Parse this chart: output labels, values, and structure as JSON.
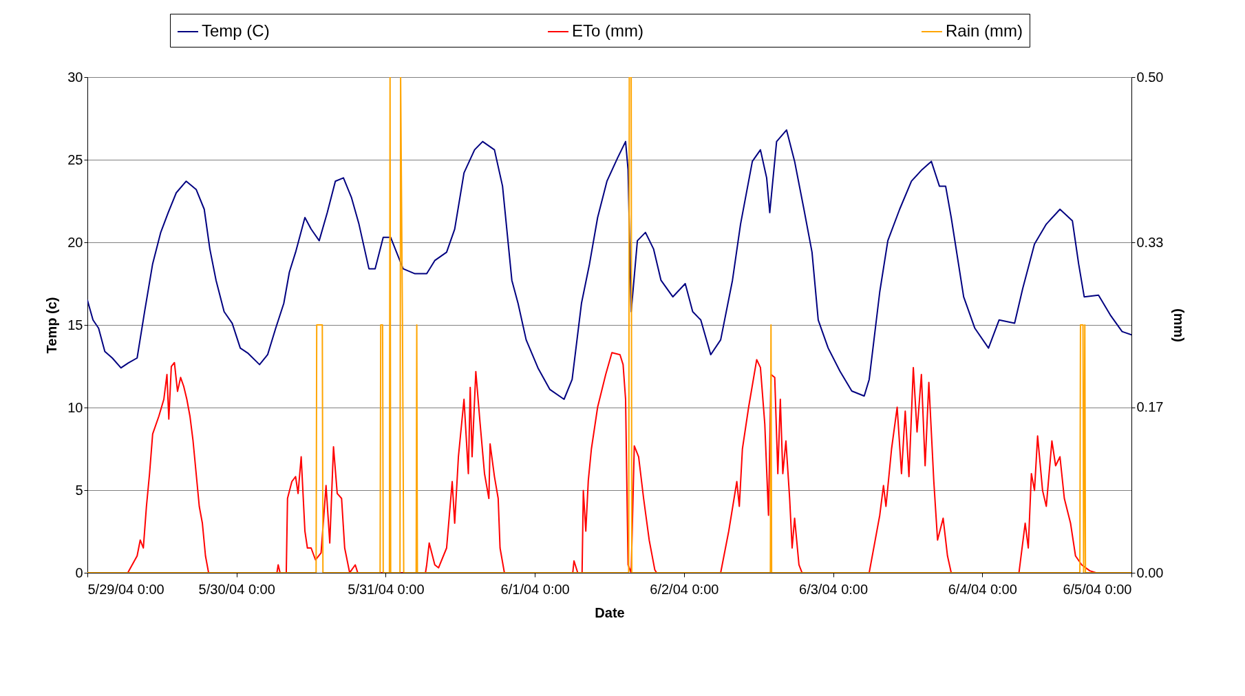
{
  "chart_data": {
    "type": "line",
    "xlabel": "Date",
    "ylabel": "Temp (c)",
    "y2label": "(mm)",
    "xlim": [
      "--05-29T00:00",
      "--06-05T00:00"
    ],
    "xticks": [
      {
        "value": "--05-29T00:00",
        "label": "5/29/04 0:00"
      },
      {
        "value": "--05-30T00:00",
        "label": "5/30/04 0:00"
      },
      {
        "value": "--05-31T00:00",
        "label": "5/31/04 0:00"
      },
      {
        "value": "--06-01T00:00",
        "label": "6/1/04 0:00"
      },
      {
        "value": "--06-02T00:00",
        "label": "6/2/04 0:00"
      },
      {
        "value": "--06-03T00:00",
        "label": "6/3/04 0:00"
      },
      {
        "value": "--06-04T00:00",
        "label": "6/4/04 0:00"
      },
      {
        "value": "--06-05T00:00",
        "label": "6/5/04 0:00"
      }
    ],
    "ylim": [
      0,
      30
    ],
    "yticks": [
      0,
      5,
      10,
      15,
      20,
      25,
      30
    ],
    "y2lim": [
      0,
      0.5
    ],
    "y2ticks": [
      {
        "value": 0,
        "label": "0.00"
      },
      {
        "value": 0.16667,
        "label": "0.17"
      },
      {
        "value": 0.33333,
        "label": "0.33"
      },
      {
        "value": 0.5,
        "label": "0.50"
      }
    ],
    "grid": "y",
    "legend": "top",
    "marker": "none",
    "line_style": "solid",
    "series": [
      {
        "name": "Temp (C)",
        "color": "#000080",
        "x": [
          "--05-29T00:00",
          "--05-29T00:54",
          "--05-29T01:48",
          "--05-29T02:48",
          "--05-29T04:00",
          "--05-29T05:24",
          "--05-29T06:36",
          "--05-29T08:00",
          "--05-29T09:12",
          "--05-29T10:30",
          "--05-29T11:48",
          "--05-29T13:00",
          "--05-29T14:18",
          "--05-29T15:54",
          "--05-29T17:30",
          "--05-29T18:48",
          "--05-29T19:42",
          "--05-29T20:42",
          "--05-29T22:00",
          "--05-29T23:18",
          "--05-30T00:36",
          "--05-30T01:48",
          "--05-30T03:42",
          "--05-30T05:00",
          "--05-30T06:18",
          "--05-30T07:36",
          "--05-30T08:30",
          "--05-30T09:30",
          "--05-30T11:00",
          "--05-30T12:00",
          "--05-30T13:18",
          "--05-30T14:36",
          "--05-30T15:54",
          "--05-30T17:12",
          "--05-30T18:30",
          "--05-30T19:42",
          "--05-30T21:18",
          "--05-30T22:18",
          "--05-30T23:36",
          "--05-31T00:48",
          "--05-31T02:48",
          "--05-31T04:42",
          "--05-31T06:36",
          "--05-31T07:54",
          "--05-31T09:48",
          "--05-31T11:06",
          "--05-31T12:36",
          "--05-31T14:18",
          "--05-31T15:36",
          "--05-31T17:30",
          "--05-31T18:48",
          "--05-31T20:18",
          "--05-31T21:18",
          "--05-31T22:36",
          "--06-01T00:30",
          "--06-01T02:24",
          "--06-01T04:42",
          "--06-01T06:00",
          "--06-01T07:30",
          "--06-01T08:48",
          "--06-01T10:06",
          "--06-01T11:36",
          "--06-01T13:18",
          "--06-01T14:36",
          "--06-01T15:00",
          "--06-01T15:30",
          "--06-01T16:30",
          "--06-01T17:48",
          "--06-01T19:06",
          "--06-01T20:18",
          "--06-01T22:12",
          "--06-02T00:12",
          "--06-02T01:24",
          "--06-02T02:42",
          "--06-02T04:18",
          "--06-02T05:54",
          "--06-02T07:48",
          "--06-02T09:06",
          "--06-02T11:00",
          "--06-02T12:18",
          "--06-02T13:18",
          "--06-02T13:48",
          "--06-02T14:54",
          "--06-02T16:30",
          "--06-02T17:48",
          "--06-02T19:18",
          "--06-02T20:36",
          "--06-02T21:36",
          "--06-02T23:12",
          "--06-03T01:06",
          "--06-03T03:00",
          "--06-03T05:00",
          "--06-03T05:48",
          "--06-03T07:30",
          "--06-03T08:48",
          "--06-03T10:42",
          "--06-03T12:36",
          "--06-03T14:18",
          "--06-03T15:48",
          "--06-03T17:06",
          "--06-03T18:06",
          "--06-03T19:00",
          "--06-03T21:00",
          "--06-03T22:48",
          "--06-04T01:00",
          "--06-04T02:42",
          "--06-04T05:12",
          "--06-04T06:30",
          "--06-04T08:24",
          "--06-04T10:18",
          "--06-04T12:30",
          "--06-04T14:30",
          "--06-04T15:30",
          "--06-04T16:24",
          "--06-04T18:42",
          "--06-04T20:36",
          "--06-04T22:30",
          "--06-05T00:00"
        ],
        "values": [
          16.5,
          15.3,
          14.8,
          13.4,
          13.0,
          12.4,
          12.7,
          13.0,
          15.8,
          18.7,
          20.6,
          21.8,
          23.0,
          23.7,
          23.2,
          22.0,
          19.6,
          17.7,
          15.8,
          15.1,
          13.6,
          13.3,
          12.6,
          13.2,
          14.8,
          16.3,
          18.2,
          19.4,
          21.5,
          20.8,
          20.1,
          21.8,
          23.7,
          23.9,
          22.7,
          21.1,
          18.4,
          18.4,
          20.3,
          20.3,
          18.4,
          18.1,
          18.1,
          18.9,
          19.4,
          20.8,
          24.2,
          25.6,
          26.1,
          25.6,
          23.4,
          17.7,
          16.3,
          14.1,
          12.4,
          11.1,
          10.5,
          11.7,
          16.3,
          18.7,
          21.5,
          23.7,
          25.1,
          26.1,
          24.4,
          15.8,
          20.1,
          20.6,
          19.6,
          17.7,
          16.7,
          17.5,
          15.8,
          15.3,
          13.2,
          14.1,
          17.7,
          21.1,
          24.9,
          25.6,
          23.9,
          21.8,
          26.1,
          26.8,
          24.9,
          22.0,
          19.4,
          15.3,
          13.6,
          12.2,
          11.0,
          10.7,
          11.7,
          17.0,
          20.1,
          22.0,
          23.7,
          24.4,
          24.9,
          23.4,
          23.4,
          21.5,
          16.7,
          14.8,
          13.6,
          15.3,
          15.1,
          17.2,
          19.9,
          21.1,
          22.0,
          21.3,
          18.7,
          16.7,
          16.8,
          15.6,
          14.6,
          14.4
        ]
      },
      {
        "name": "ETo (mm)",
        "color": "#ff0000",
        "axis": "y2",
        "x": [
          "--05-29T00:00",
          "--05-29T06:30",
          "--05-29T08:00",
          "--05-29T08:30",
          "--05-29T09:00",
          "--05-29T09:30",
          "--05-29T10:00",
          "--05-29T10:30",
          "--05-29T11:30",
          "--05-29T12:18",
          "--05-29T12:48",
          "--05-29T13:06",
          "--05-29T13:30",
          "--05-29T14:00",
          "--05-29T14:30",
          "--05-29T15:00",
          "--05-29T15:30",
          "--05-29T16:00",
          "--05-29T16:30",
          "--05-29T17:00",
          "--05-29T17:30",
          "--05-29T18:00",
          "--05-29T18:30",
          "--05-29T19:00",
          "--05-29T19:30",
          "--05-30T06:30",
          "--05-30T06:42",
          "--05-30T07:00",
          "--05-30T08:00",
          "--05-30T08:12",
          "--05-30T08:54",
          "--05-30T09:30",
          "--05-30T09:54",
          "--05-30T10:24",
          "--05-30T11:00",
          "--05-30T11:24",
          "--05-30T12:00",
          "--05-30T12:42",
          "--05-30T13:36",
          "--05-30T14:24",
          "--05-30T15:00",
          "--05-30T15:36",
          "--05-30T16:12",
          "--05-30T16:54",
          "--05-30T17:24",
          "--05-30T18:12",
          "--05-30T19:06",
          "--05-30T19:30",
          "--05-31T06:24",
          "--05-31T06:36",
          "--05-31T07:00",
          "--05-31T07:54",
          "--05-31T08:30",
          "--05-31T09:48",
          "--05-31T10:42",
          "--05-31T11:06",
          "--05-31T11:42",
          "--05-31T12:36",
          "--05-31T13:18",
          "--05-31T13:36",
          "--05-31T13:54",
          "--05-31T14:30",
          "--05-31T15:12",
          "--05-31T15:54",
          "--05-31T16:36",
          "--05-31T16:48",
          "--05-31T17:30",
          "--05-31T18:06",
          "--05-31T18:24",
          "--05-31T19:06",
          "--06-01T06:06",
          "--06-01T06:18",
          "--06-01T06:54",
          "--06-01T07:36",
          "--06-01T07:48",
          "--06-01T08:12",
          "--06-01T08:36",
          "--06-01T09:06",
          "--06-01T10:06",
          "--06-01T11:24",
          "--06-01T12:24",
          "--06-01T13:42",
          "--06-01T14:12",
          "--06-01T14:36",
          "--06-01T15:00",
          "--06-01T15:30",
          "--06-01T16:00",
          "--06-01T16:42",
          "--06-01T17:30",
          "--06-01T18:24",
          "--06-01T19:18",
          "--06-01T19:36",
          "--06-02T05:54",
          "--06-02T07:12",
          "--06-02T08:30",
          "--06-02T08:54",
          "--06-02T09:24",
          "--06-02T10:24",
          "--06-02T11:42",
          "--06-02T12:18",
          "--06-02T13:00",
          "--06-02T13:36",
          "--06-02T14:00",
          "--06-02T14:36",
          "--06-02T15:06",
          "--06-02T15:30",
          "--06-02T15:54",
          "--06-02T16:24",
          "--06-02T17:00",
          "--06-02T17:24",
          "--06-02T17:48",
          "--06-02T18:30",
          "--06-02T19:00",
          "--06-03T05:48",
          "--06-03T07:30",
          "--06-03T08:06",
          "--06-03T08:30",
          "--06-03T09:24",
          "--06-03T10:18",
          "--06-03T11:00",
          "--06-03T11:36",
          "--06-03T12:12",
          "--06-03T12:54",
          "--06-03T13:30",
          "--06-03T14:12",
          "--06-03T14:48",
          "--06-03T15:24",
          "--06-03T16:12",
          "--06-03T16:48",
          "--06-03T17:42",
          "--06-03T18:24",
          "--06-03T19:00",
          "--06-04T05:54",
          "--06-04T06:54",
          "--06-04T07:24",
          "--06-04T07:54",
          "--06-04T08:24",
          "--06-04T08:54",
          "--06-04T09:42",
          "--06-04T10:18",
          "--06-04T11:12",
          "--06-04T11:48",
          "--06-04T12:30",
          "--06-04T13:12",
          "--06-04T14:12",
          "--06-04T15:00",
          "--06-04T16:00",
          "--06-04T17:18",
          "--06-04T18:18",
          "--06-05T00:00"
        ],
        "values": [
          0,
          0,
          0.017,
          0.033,
          0.025,
          0.067,
          0.1,
          0.14,
          0.158,
          0.175,
          0.2,
          0.155,
          0.208,
          0.212,
          0.183,
          0.197,
          0.188,
          0.175,
          0.158,
          0.133,
          0.1,
          0.067,
          0.05,
          0.017,
          0,
          0,
          0.008,
          0,
          0,
          0.075,
          0.092,
          0.097,
          0.08,
          0.117,
          0.042,
          0.025,
          0.025,
          0.013,
          0.02,
          0.088,
          0.03,
          0.127,
          0.08,
          0.075,
          0.025,
          0,
          0.008,
          0,
          0,
          0.008,
          0.03,
          0.008,
          0.005,
          0.025,
          0.092,
          0.05,
          0.117,
          0.175,
          0.1,
          0.187,
          0.117,
          0.203,
          0.15,
          0.1,
          0.075,
          0.13,
          0.097,
          0.075,
          0.025,
          0,
          0,
          0.012,
          0,
          0,
          0.083,
          0.042,
          0.093,
          0.125,
          0.167,
          0.2,
          0.222,
          0.22,
          0.21,
          0.175,
          0.008,
          0,
          0.128,
          0.117,
          0.075,
          0.033,
          0.003,
          0,
          0,
          0.042,
          0.092,
          0.067,
          0.125,
          0.167,
          0.215,
          0.207,
          0.15,
          0.058,
          0.2,
          0.197,
          0.1,
          0.175,
          0.1,
          0.133,
          0.075,
          0.025,
          0.055,
          0.008,
          0,
          0,
          0.058,
          0.088,
          0.067,
          0.125,
          0.167,
          0.1,
          0.163,
          0.097,
          0.207,
          0.142,
          0.2,
          0.108,
          0.192,
          0.092,
          0.033,
          0.055,
          0.017,
          0,
          0,
          0.05,
          0.025,
          0.1,
          0.083,
          0.138,
          0.083,
          0.067,
          0.133,
          0.108,
          0.117,
          0.075,
          0.05,
          0.017,
          0.008,
          0.002,
          0,
          0
        ]
      },
      {
        "name": "Rain (mm)",
        "color": "#ffa500",
        "axis": "y2",
        "x": [
          "--05-29T00:00",
          "--05-30T12:48",
          "--05-30T12:54",
          "--05-30T13:48",
          "--05-30T13:54",
          "--05-30T23:06",
          "--05-30T23:12",
          "--05-30T23:30",
          "--05-30T23:36",
          "--05-31T00:36",
          "--05-31T00:42",
          "--05-31T00:48",
          "--05-31T02:18",
          "--05-31T02:24",
          "--05-31T02:42",
          "--05-31T02:54",
          "--05-31T04:54",
          "--05-31T05:00",
          "--05-31T05:06",
          "--06-01T15:06",
          "--06-01T15:12",
          "--06-01T15:30",
          "--06-01T15:36",
          "--06-02T13:54",
          "--06-02T14:00",
          "--06-02T14:06",
          "--06-04T15:42",
          "--06-04T15:48",
          "--06-04T16:12",
          "--06-04T16:18",
          "--06-04T16:30",
          "--06-04T16:36",
          "--06-05T00:00"
        ],
        "values": [
          0,
          0,
          0.25,
          0.25,
          0,
          0,
          0.25,
          0.25,
          0,
          0,
          0.5,
          0,
          0,
          0.5,
          0.25,
          0,
          0,
          0.25,
          0,
          0,
          0.5,
          0.5,
          0,
          0,
          0.25,
          0,
          0,
          0.25,
          0.25,
          0,
          0.25,
          0,
          0
        ]
      }
    ]
  }
}
